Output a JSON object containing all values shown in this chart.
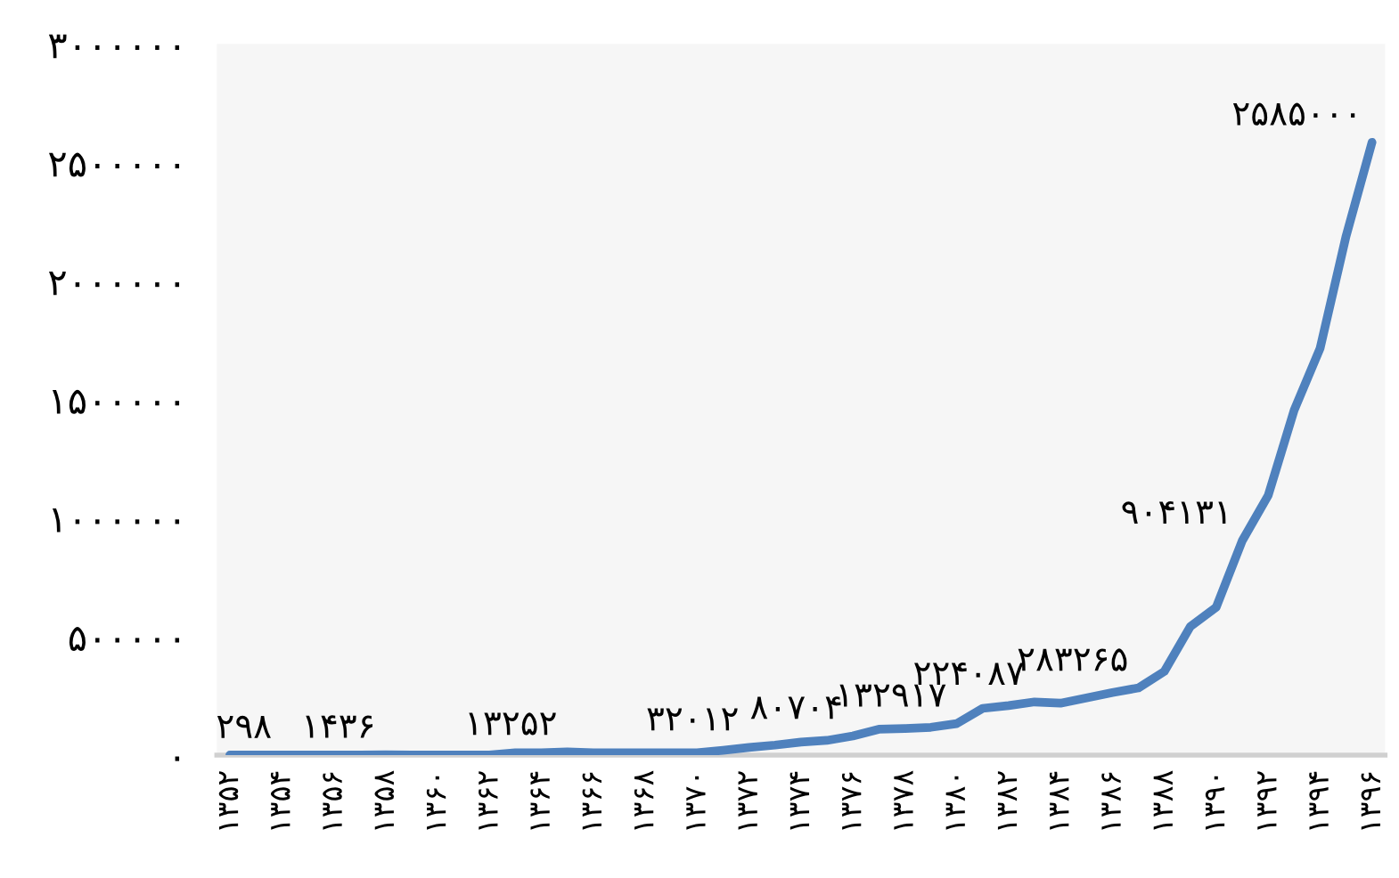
{
  "chart_data": {
    "type": "line",
    "color": "#4f81bd",
    "x": [
      1352,
      1353,
      1354,
      1355,
      1356,
      1357,
      1358,
      1359,
      1360,
      1361,
      1362,
      1363,
      1364,
      1365,
      1366,
      1367,
      1368,
      1369,
      1370,
      1371,
      1372,
      1373,
      1374,
      1375,
      1376,
      1377,
      1378,
      1379,
      1380,
      1381,
      1382,
      1383,
      1384,
      1385,
      1386,
      1387,
      1388,
      1389,
      1390,
      1391,
      1392,
      1393,
      1394,
      1395,
      1396
    ],
    "values": [
      0,
      0,
      298,
      0,
      0,
      0,
      1436,
      0,
      0,
      0,
      0,
      10000,
      10000,
      13252,
      10000,
      10000,
      10000,
      10000,
      10000,
      20000,
      32012,
      42000,
      55000,
      62000,
      80704,
      109000,
      112000,
      117000,
      132917,
      197000,
      209000,
      224087,
      219000,
      241000,
      264000,
      283265,
      353000,
      542000,
      624000,
      904131,
      1095000,
      1455000,
      1716000,
      2189000,
      2585000
    ],
    "value_labels": [
      null,
      null,
      "۲۹۸",
      null,
      null,
      null,
      "۱۴۳۶",
      null,
      null,
      null,
      null,
      null,
      null,
      "۱۳۲۵۲",
      null,
      null,
      null,
      null,
      null,
      null,
      "۳۲۰۱۲",
      null,
      null,
      null,
      "۸۰۷۰۴",
      null,
      null,
      null,
      "۱۳۲۹۱۷",
      null,
      null,
      "۲۲۴۰۸۷",
      null,
      null,
      null,
      "۲۸۳۲۶۵",
      null,
      null,
      null,
      "۹۰۴۱۳۱",
      null,
      null,
      null,
      null,
      "۲۵۸۵۰۰۰"
    ],
    "xlim": [
      1351.5,
      1396.5
    ],
    "xticks": [
      {
        "value": 1352,
        "label": "۱۳۵۲"
      },
      {
        "value": 1354,
        "label": "۱۳۵۴"
      },
      {
        "value": 1356,
        "label": "۱۳۵۶"
      },
      {
        "value": 1358,
        "label": "۱۳۵۸"
      },
      {
        "value": 1360,
        "label": "۱۳۶۰"
      },
      {
        "value": 1362,
        "label": "۱۳۶۲"
      },
      {
        "value": 1364,
        "label": "۱۳۶۴"
      },
      {
        "value": 1366,
        "label": "۱۳۶۶"
      },
      {
        "value": 1368,
        "label": "۱۳۶۸"
      },
      {
        "value": 1370,
        "label": "۱۳۷۰"
      },
      {
        "value": 1372,
        "label": "۱۳۷۲"
      },
      {
        "value": 1374,
        "label": "۱۳۷۴"
      },
      {
        "value": 1376,
        "label": "۱۳۷۶"
      },
      {
        "value": 1378,
        "label": "۱۳۷۸"
      },
      {
        "value": 1380,
        "label": "۱۳۸۰"
      },
      {
        "value": 1382,
        "label": "۱۳۸۲"
      },
      {
        "value": 1384,
        "label": "۱۳۸۴"
      },
      {
        "value": 1386,
        "label": "۱۳۸۶"
      },
      {
        "value": 1388,
        "label": "۱۳۸۸"
      },
      {
        "value": 1390,
        "label": "۱۳۹۰"
      },
      {
        "value": 1392,
        "label": "۱۳۹۲"
      },
      {
        "value": 1394,
        "label": "۱۳۹۴"
      },
      {
        "value": 1396,
        "label": "۱۳۹۶"
      }
    ],
    "ylim": [
      0,
      3000000
    ],
    "yticks": [
      {
        "value": 0,
        "label": "۰"
      },
      {
        "value": 500000,
        "label": "۵۰۰۰۰۰"
      },
      {
        "value": 1000000,
        "label": "۱۰۰۰۰۰۰"
      },
      {
        "value": 1500000,
        "label": "۱۵۰۰۰۰۰"
      },
      {
        "value": 2000000,
        "label": "۲۰۰۰۰۰۰"
      },
      {
        "value": 2500000,
        "label": "۲۵۰۰۰۰۰"
      },
      {
        "value": 3000000,
        "label": "۳۰۰۰۰۰۰"
      }
    ],
    "grid": false,
    "legend": false,
    "marker": "none",
    "line_style": "solid"
  }
}
